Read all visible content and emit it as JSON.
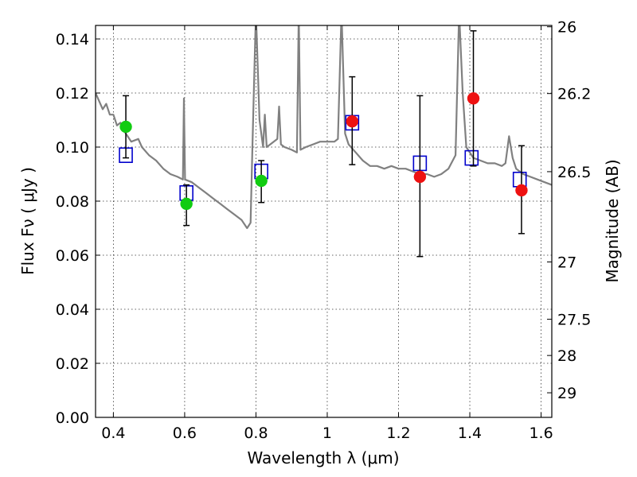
{
  "chart_data": {
    "type": "scatter",
    "title": "",
    "xlabel": "Wavelength  λ (μm)",
    "ylabel": "Flux  Fν  ( μJy )",
    "ylabel_right": "Magnitude (AB)",
    "xlim": [
      0.35,
      1.63
    ],
    "ylim": [
      0.0,
      0.145
    ],
    "grid": true,
    "x_ticks": [
      {
        "value": 0.4,
        "label": "0.4"
      },
      {
        "value": 0.6,
        "label": "0.6"
      },
      {
        "value": 0.8,
        "label": "0.8"
      },
      {
        "value": 1.0,
        "label": "1"
      },
      {
        "value": 1.2,
        "label": "1.2"
      },
      {
        "value": 1.4,
        "label": "1.4"
      },
      {
        "value": 1.6,
        "label": "1.6"
      }
    ],
    "y_ticks": [
      {
        "value": 0.0,
        "label": "0.00"
      },
      {
        "value": 0.02,
        "label": "0.02"
      },
      {
        "value": 0.04,
        "label": "0.04"
      },
      {
        "value": 0.06,
        "label": "0.06"
      },
      {
        "value": 0.08,
        "label": "0.08"
      },
      {
        "value": 0.1,
        "label": "0.10"
      },
      {
        "value": 0.12,
        "label": "0.12"
      },
      {
        "value": 0.14,
        "label": "0.14"
      }
    ],
    "right_ticks": [
      {
        "label": "26",
        "flux": 0.1445
      },
      {
        "label": "26.2",
        "flux": 0.1198
      },
      {
        "label": "26.5",
        "flux": 0.0909
      },
      {
        "label": "27",
        "flux": 0.0575
      },
      {
        "label": "27.5",
        "flux": 0.0363
      },
      {
        "label": "28",
        "flux": 0.0229
      },
      {
        "label": "29",
        "flux": 0.0091
      }
    ],
    "sed_curve": {
      "color": "#808080",
      "points": [
        [
          0.35,
          0.12
        ],
        [
          0.36,
          0.117
        ],
        [
          0.37,
          0.114
        ],
        [
          0.38,
          0.116
        ],
        [
          0.39,
          0.112
        ],
        [
          0.4,
          0.112
        ],
        [
          0.41,
          0.108
        ],
        [
          0.42,
          0.109
        ],
        [
          0.43,
          0.106
        ],
        [
          0.44,
          0.104
        ],
        [
          0.45,
          0.102
        ],
        [
          0.47,
          0.103
        ],
        [
          0.48,
          0.1
        ],
        [
          0.5,
          0.097
        ],
        [
          0.52,
          0.095
        ],
        [
          0.54,
          0.092
        ],
        [
          0.56,
          0.09
        ],
        [
          0.58,
          0.089
        ],
        [
          0.595,
          0.088
        ],
        [
          0.598,
          0.118
        ],
        [
          0.601,
          0.088
        ],
        [
          0.62,
          0.087
        ],
        [
          0.64,
          0.085
        ],
        [
          0.66,
          0.083
        ],
        [
          0.68,
          0.081
        ],
        [
          0.7,
          0.079
        ],
        [
          0.72,
          0.077
        ],
        [
          0.74,
          0.075
        ],
        [
          0.76,
          0.073
        ],
        [
          0.775,
          0.07
        ],
        [
          0.785,
          0.072
        ],
        [
          0.79,
          0.1
        ],
        [
          0.8,
          0.15
        ],
        [
          0.81,
          0.11
        ],
        [
          0.82,
          0.1
        ],
        [
          0.825,
          0.112
        ],
        [
          0.83,
          0.1
        ],
        [
          0.84,
          0.101
        ],
        [
          0.86,
          0.103
        ],
        [
          0.865,
          0.115
        ],
        [
          0.87,
          0.101
        ],
        [
          0.88,
          0.1
        ],
        [
          0.9,
          0.099
        ],
        [
          0.915,
          0.098
        ],
        [
          0.92,
          0.15
        ],
        [
          0.925,
          0.099
        ],
        [
          0.94,
          0.1
        ],
        [
          0.96,
          0.101
        ],
        [
          0.98,
          0.102
        ],
        [
          1.0,
          0.102
        ],
        [
          1.02,
          0.102
        ],
        [
          1.03,
          0.103
        ],
        [
          1.04,
          0.15
        ],
        [
          1.05,
          0.105
        ],
        [
          1.06,
          0.101
        ],
        [
          1.08,
          0.098
        ],
        [
          1.1,
          0.095
        ],
        [
          1.12,
          0.093
        ],
        [
          1.14,
          0.093
        ],
        [
          1.16,
          0.092
        ],
        [
          1.18,
          0.093
        ],
        [
          1.2,
          0.092
        ],
        [
          1.22,
          0.092
        ],
        [
          1.24,
          0.091
        ],
        [
          1.26,
          0.09
        ],
        [
          1.28,
          0.09
        ],
        [
          1.3,
          0.089
        ],
        [
          1.32,
          0.09
        ],
        [
          1.34,
          0.092
        ],
        [
          1.36,
          0.097
        ],
        [
          1.37,
          0.15
        ],
        [
          1.38,
          0.12
        ],
        [
          1.39,
          0.1
        ],
        [
          1.41,
          0.096
        ],
        [
          1.43,
          0.095
        ],
        [
          1.45,
          0.094
        ],
        [
          1.47,
          0.094
        ],
        [
          1.49,
          0.093
        ],
        [
          1.5,
          0.094
        ],
        [
          1.51,
          0.104
        ],
        [
          1.52,
          0.096
        ],
        [
          1.53,
          0.092
        ],
        [
          1.55,
          0.09
        ],
        [
          1.57,
          0.089
        ],
        [
          1.59,
          0.088
        ],
        [
          1.61,
          0.087
        ],
        [
          1.63,
          0.086
        ]
      ]
    },
    "model_points": {
      "color": "#0000cc",
      "marker": "open-square",
      "points": [
        [
          0.435,
          0.097
        ],
        [
          0.605,
          0.083
        ],
        [
          0.815,
          0.091
        ],
        [
          1.07,
          0.109
        ],
        [
          1.26,
          0.094
        ],
        [
          1.405,
          0.096
        ],
        [
          1.54,
          0.088
        ]
      ]
    },
    "observed_points": [
      {
        "x": 0.435,
        "y": 0.1075,
        "yerr_lo": 0.096,
        "yerr_hi": 0.119,
        "color": "#11cc11"
      },
      {
        "x": 0.605,
        "y": 0.079,
        "yerr_lo": 0.071,
        "yerr_hi": 0.086,
        "color": "#11cc11"
      },
      {
        "x": 0.815,
        "y": 0.0875,
        "yerr_lo": 0.0795,
        "yerr_hi": 0.095,
        "color": "#11cc11"
      },
      {
        "x": 1.07,
        "y": 0.1095,
        "yerr_lo": 0.0935,
        "yerr_hi": 0.126,
        "color": "#ee1111"
      },
      {
        "x": 1.26,
        "y": 0.089,
        "yerr_lo": 0.0595,
        "yerr_hi": 0.119,
        "color": "#ee1111"
      },
      {
        "x": 1.41,
        "y": 0.118,
        "yerr_lo": 0.093,
        "yerr_hi": 0.143,
        "color": "#ee1111"
      },
      {
        "x": 1.545,
        "y": 0.084,
        "yerr_lo": 0.068,
        "yerr_hi": 0.1005,
        "color": "#ee1111"
      }
    ]
  }
}
